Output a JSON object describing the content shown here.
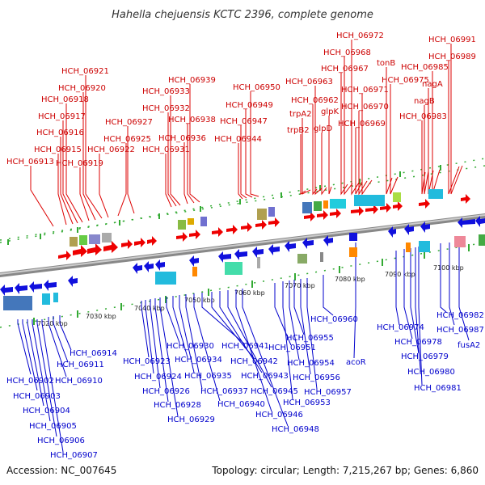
{
  "title": "Hahella chejuensis KCTC 2396, complete genome",
  "footer": {
    "accession": "Accession: NC_007645",
    "summary": "Topology: circular; Length: 7,215,267 bp; Genes: 6,860"
  },
  "colors": {
    "forward": "#ee0000",
    "reverse": "#1010dd",
    "backbone": "#888888",
    "ticks": "#33aa33"
  },
  "kbp_labels": [
    "7020 kbp",
    "7030 kbp",
    "7040 kbp",
    "7050 kbp",
    "7060 kbp",
    "7070 kbp",
    "7080 kbp",
    "7090 kbp",
    "7100 kbp"
  ],
  "forward_genes": [
    "HCH_06913",
    "HCH_06915",
    "HCH_06916",
    "HCH_06917",
    "HCH_06918",
    "HCH_06919",
    "HCH_06920",
    "HCH_06921",
    "HCH_06922",
    "HCH_06925",
    "HCH_06927",
    "HCH_06931",
    "HCH_06932",
    "HCH_06933",
    "HCH_06936",
    "HCH_06938",
    "HCH_06939",
    "HCH_06944",
    "HCH_06947",
    "HCH_06949",
    "HCH_06950",
    "trpB2",
    "trpA2",
    "HCH_06962",
    "HCH_06963",
    "glpD",
    "glpK",
    "HCH_06967",
    "HCH_06968",
    "HCH_06969",
    "HCH_06970",
    "HCH_06971",
    "HCH_06972",
    "tonB",
    "HCH_06975",
    "HCH_06983",
    "nagB",
    "nagA",
    "HCH_06985",
    "HCH_06989",
    "HCH_06991"
  ],
  "reverse_genes": [
    "HCH_06902",
    "HCH_06903",
    "HCH_06904",
    "HCH_06905",
    "HCH_06906",
    "HCH_06907",
    "HCH_06910",
    "HCH_06911",
    "HCH_06914",
    "HCH_06923",
    "HCH_06924",
    "HCH_06926",
    "HCH_06928",
    "HCH_06929",
    "HCH_06930",
    "HCH_06934",
    "HCH_06935",
    "HCH_06937",
    "HCH_06940",
    "HCH_06941",
    "HCH_06942",
    "HCH_06943",
    "HCH_06945",
    "HCH_06946",
    "HCH_06948",
    "HCH_06951",
    "HCH_06953",
    "HCH_06954",
    "HCH_06955",
    "HCH_06956",
    "HCH_06957",
    "HCH_06960",
    "acoR",
    "HCH_06974",
    "HCH_06978",
    "HCH_06979",
    "HCH_06980",
    "HCH_06981",
    "HCH_06982",
    "HCH_06987",
    "fusA2"
  ]
}
